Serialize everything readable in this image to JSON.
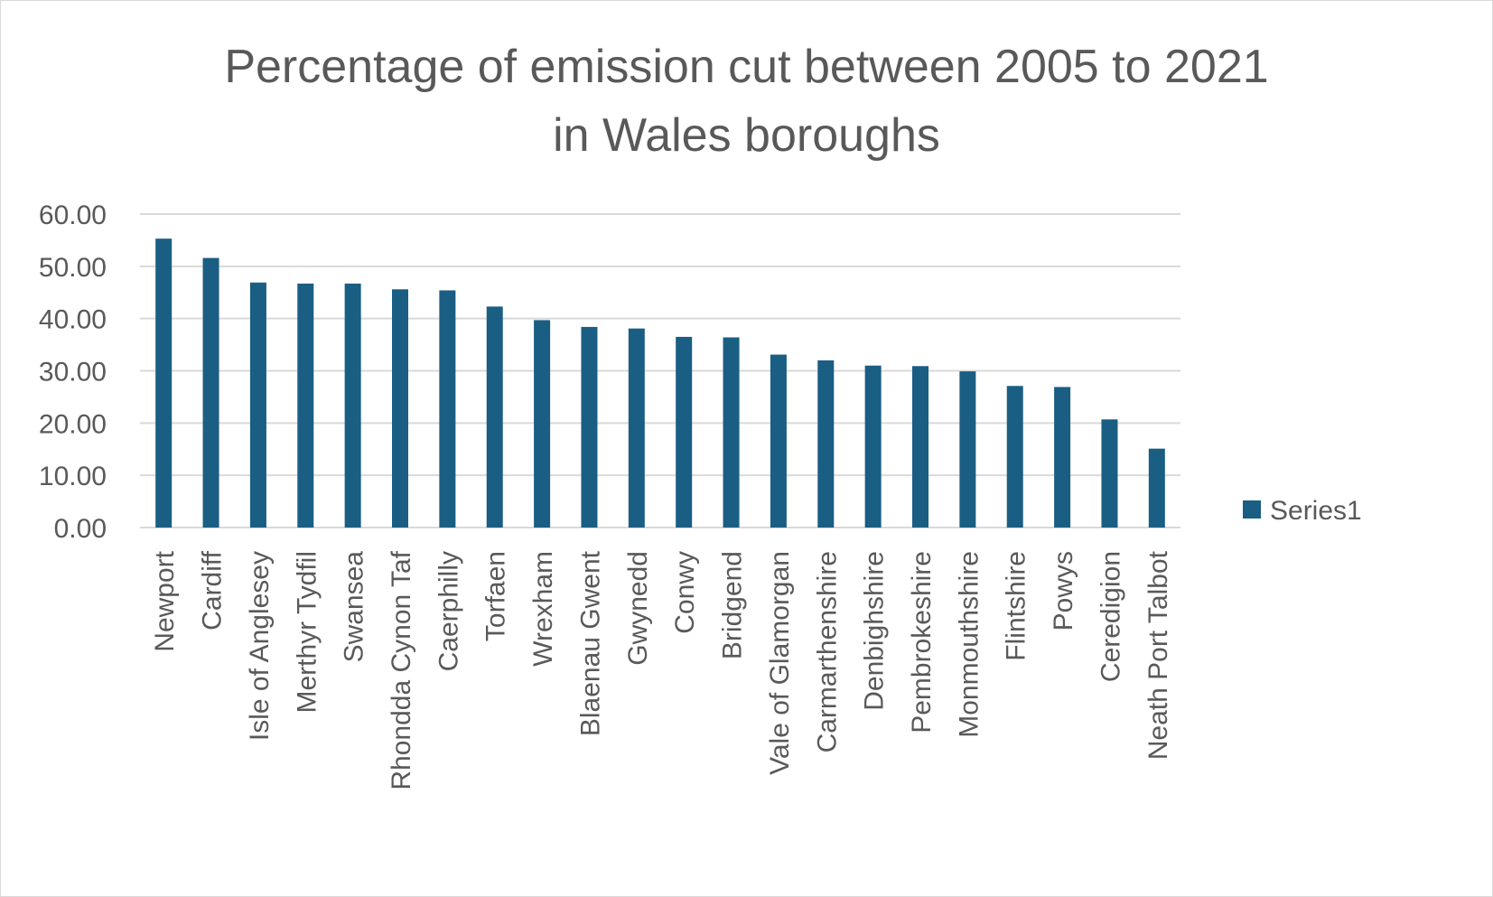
{
  "chart_data": {
    "type": "bar",
    "title_lines": [
      "Percentage of emission cut between 2005 to 2021",
      "in Wales boroughs"
    ],
    "categories": [
      "Newport",
      "Cardiff",
      "Isle of Anglesey",
      "Merthyr Tydfil",
      "Swansea",
      "Rhondda Cynon Taf",
      "Caerphilly",
      "Torfaen",
      "Wrexham",
      "Blaenau Gwent",
      "Gwynedd",
      "Conwy",
      "Bridgend",
      "Vale of Glamorgan",
      "Carmarthenshire",
      "Denbighshire",
      "Pembrokeshire",
      "Monmouthshire",
      "Flintshire",
      "Powys",
      "Ceredigion",
      "Neath Port Talbot"
    ],
    "series": [
      {
        "name": "Series1",
        "color": "#1a5e83",
        "values": [
          55.3,
          51.6,
          46.9,
          46.7,
          46.7,
          45.6,
          45.4,
          42.3,
          39.7,
          38.4,
          38.1,
          36.5,
          36.4,
          33.1,
          32.0,
          31.0,
          30.9,
          29.9,
          27.1,
          26.9,
          20.7,
          15.1
        ]
      }
    ],
    "ylim": [
      0,
      60
    ],
    "yticks": [
      "0.00",
      "10.00",
      "20.00",
      "30.00",
      "40.00",
      "50.00",
      "60.00"
    ],
    "grid": true,
    "legend": "right"
  }
}
